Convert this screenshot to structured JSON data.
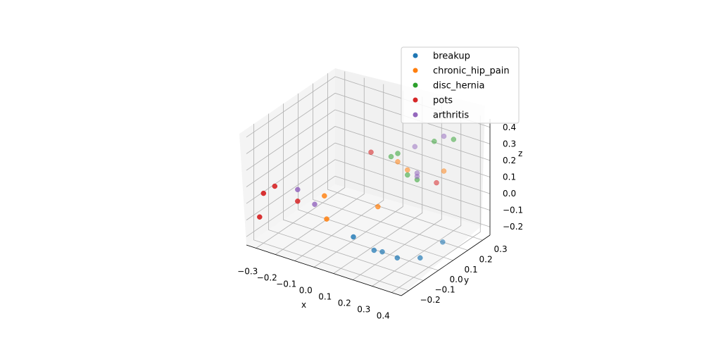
{
  "chart_data": {
    "type": "scatter",
    "projection": "3d",
    "xlabel": "x",
    "ylabel": "y",
    "zlabel": "z",
    "xticks": [
      "−0.3",
      "−0.2",
      "−0.1",
      "0.0",
      "0.1",
      "0.2",
      "0.3",
      "0.4"
    ],
    "yticks": [
      "−0.2",
      "−0.1",
      "0.0",
      "0.1",
      "0.2",
      "0.3"
    ],
    "zticks": [
      "−0.2",
      "−0.1",
      "0.0",
      "0.1",
      "0.2",
      "0.3",
      "0.4"
    ],
    "legend_position": "top-right",
    "grid": true,
    "series": [
      {
        "name": "breakup",
        "color": "#1f77b4",
        "points": [
          {
            "x": 0.05,
            "y": -0.05,
            "z": -0.17
          },
          {
            "x": 0.2,
            "y": 0.05,
            "z": -0.3
          },
          {
            "x": 0.08,
            "y": 0.05,
            "z": -0.3
          },
          {
            "x": 0.1,
            "y": 0.08,
            "z": -0.32
          },
          {
            "x": 0.28,
            "y": 0.1,
            "z": -0.3
          },
          {
            "x": 0.32,
            "y": 0.2,
            "z": -0.25
          }
        ]
      },
      {
        "name": "chronic_hip_pain",
        "color": "#ff7f0e",
        "points": [
          {
            "x": -0.1,
            "y": -0.05,
            "z": 0.02
          },
          {
            "x": -0.05,
            "y": -0.1,
            "z": -0.07
          },
          {
            "x": 0.1,
            "y": 0.05,
            "z": -0.03
          },
          {
            "x": 0.05,
            "y": 0.25,
            "z": 0.1
          },
          {
            "x": 0.1,
            "y": 0.25,
            "z": 0.07
          },
          {
            "x": 0.25,
            "y": 0.3,
            "z": 0.09
          }
        ]
      },
      {
        "name": "disc_hernia",
        "color": "#2ca02c",
        "points": [
          {
            "x": 0.05,
            "y": 0.25,
            "z": 0.15
          },
          {
            "x": 0.0,
            "y": 0.27,
            "z": 0.1
          },
          {
            "x": 0.1,
            "y": 0.25,
            "z": 0.04
          },
          {
            "x": 0.15,
            "y": 0.25,
            "z": 0.03
          },
          {
            "x": 0.2,
            "y": 0.3,
            "z": 0.25
          },
          {
            "x": 0.3,
            "y": 0.3,
            "z": 0.3
          }
        ]
      },
      {
        "name": "pots",
        "color": "#d62728",
        "points": [
          {
            "x": -0.3,
            "y": -0.2,
            "z": 0.05
          },
          {
            "x": -0.28,
            "y": -0.15,
            "z": 0.07
          },
          {
            "x": -0.32,
            "y": -0.2,
            "z": -0.1
          },
          {
            "x": -0.2,
            "y": -0.1,
            "z": -0.02
          },
          {
            "x": -0.05,
            "y": 0.2,
            "z": 0.15
          },
          {
            "x": 0.25,
            "y": 0.25,
            "z": 0.05
          }
        ]
      },
      {
        "name": "arthritis",
        "color": "#9467bd",
        "points": [
          {
            "x": -0.2,
            "y": -0.1,
            "z": 0.05
          },
          {
            "x": -0.15,
            "y": -0.05,
            "z": -0.05
          },
          {
            "x": 0.1,
            "y": 0.3,
            "z": 0.18
          },
          {
            "x": 0.15,
            "y": 0.25,
            "z": 0.05
          },
          {
            "x": 0.15,
            "y": 0.25,
            "z": 0.07
          },
          {
            "x": 0.25,
            "y": 0.3,
            "z": 0.3
          }
        ]
      }
    ]
  }
}
